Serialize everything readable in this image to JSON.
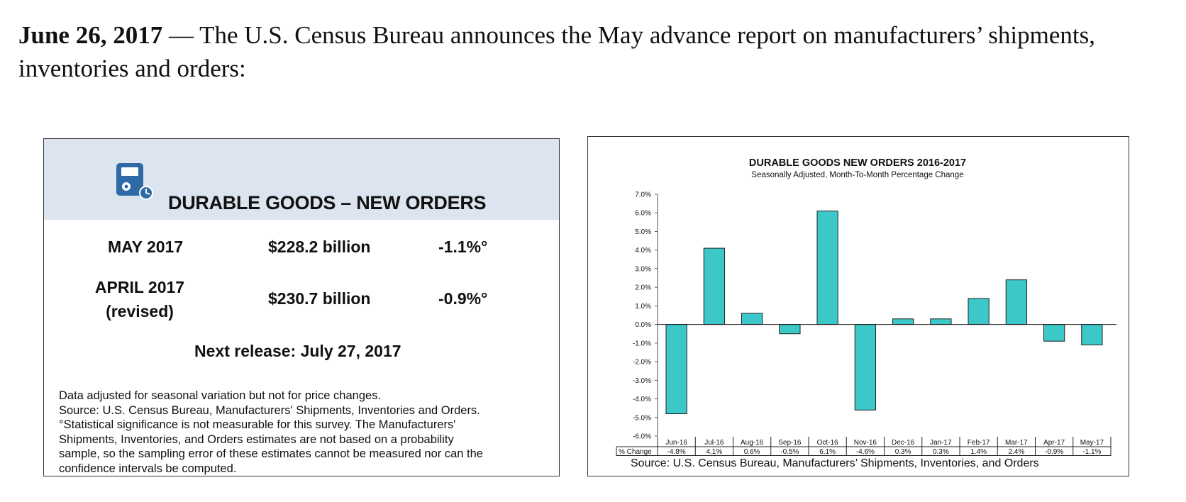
{
  "headline": {
    "date": "June 26, 2017",
    "text": " — The U.S. Census Bureau announces the May advance report on manufacturers’ shipments, inventories and orders:"
  },
  "summary_card": {
    "title": "DURABLE GOODS – NEW ORDERS",
    "icon": "gauge-clock-icon",
    "band_color": "#dbe4ef",
    "rows": [
      {
        "period": "MAY 2017",
        "period_note": "",
        "value": "$228.2 billion",
        "change": "-1.1%°"
      },
      {
        "period": "APRIL 2017",
        "period_note": "(revised)",
        "value": "$230.7 billion",
        "change": "-0.9%°"
      }
    ],
    "next_release": "Next release: July 27, 2017",
    "notes": [
      "Data adjusted for seasonal variation but not for price changes.",
      "Source: U.S. Census Bureau, Manufacturers' Shipments, Inventories and Orders.",
      "°Statistical significance is not measurable for this survey.  The Manufacturers'",
      "Shipments, Inventories, and Orders estimates are not based on a probability",
      "sample, so the sampling error of these estimates cannot be measured nor can the",
      "confidence intervals be computed."
    ]
  },
  "chart_data": {
    "type": "bar",
    "title": "DURABLE GOODS NEW ORDERS 2016-2017",
    "subtitle": "Seasonally Adjusted,  Month-To-Month  Percentage Change",
    "categories": [
      "Jun-16",
      "Jul-16",
      "Aug-16",
      "Sep-16",
      "Oct-16",
      "Nov-16",
      "Dec-16",
      "Jan-17",
      "Feb-17",
      "Mar-17",
      "Apr-17",
      "May-17"
    ],
    "series": [
      {
        "name": "% Change",
        "values": [
          -4.8,
          4.1,
          0.6,
          -0.5,
          6.1,
          -4.6,
          0.3,
          0.3,
          1.4,
          2.4,
          -0.9,
          -1.1
        ]
      }
    ],
    "table_row_label": "% Change",
    "table_values": [
      "-4.8%",
      "4.1%",
      "0.6%",
      "-0.5%",
      "6.1%",
      "-4.6%",
      "0.3%",
      "0.3%",
      "1.4%",
      "2.4%",
      "-0.9%",
      "-1.1%"
    ],
    "ylim": [
      -6.0,
      7.0
    ],
    "yticks": [
      "7.0%",
      "6.0%",
      "5.0%",
      "4.0%",
      "3.0%",
      "2.0%",
      "1.0%",
      "0.0%",
      "-1.0%",
      "-2.0%",
      "-3.0%",
      "-4.0%",
      "-5.0%",
      "-6.0%"
    ],
    "bar_color": "#3cc8c8",
    "grid": false,
    "legend": "none",
    "source": "Source: U.S. Census Bureau, Manufacturers’ Shipments, Inventories, and Orders"
  }
}
